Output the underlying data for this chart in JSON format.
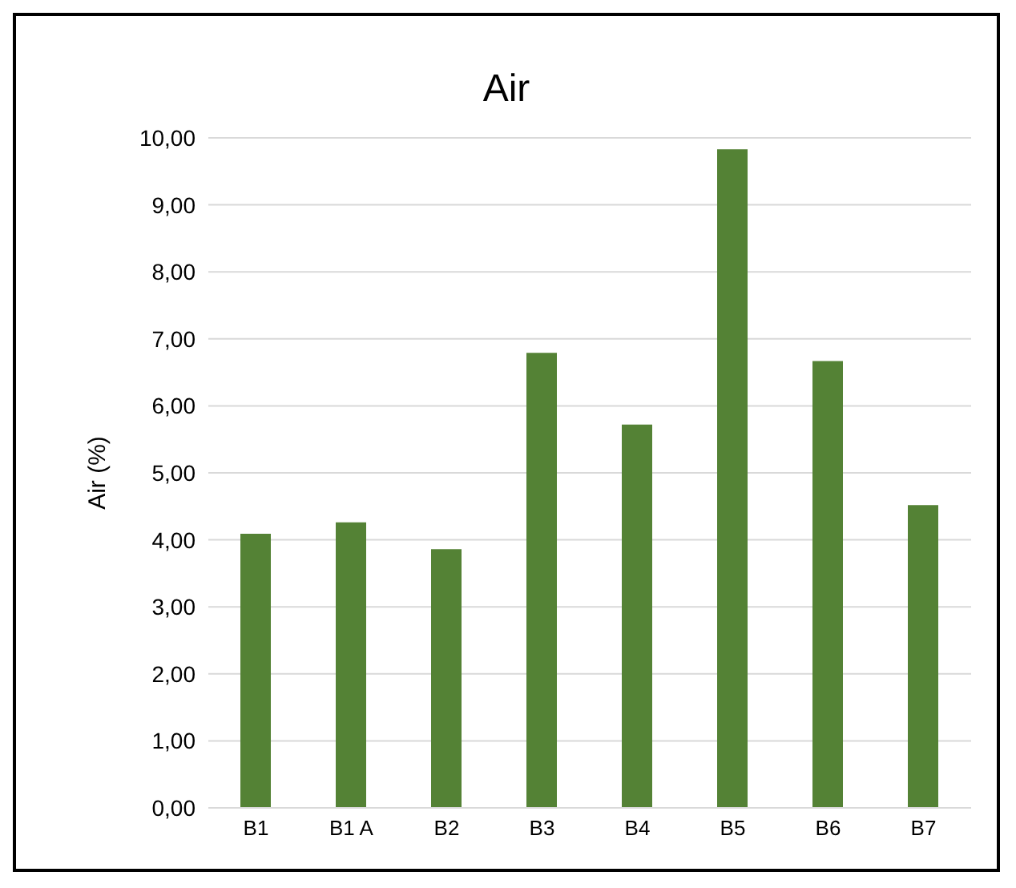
{
  "chart_data": {
    "type": "bar",
    "title": "Air",
    "ylabel": "Air (%)",
    "categories": [
      "B1",
      "B1 A",
      "B2",
      "B3",
      "B4",
      "B5",
      "B6",
      "B7"
    ],
    "values": [
      4.09,
      4.26,
      3.86,
      6.79,
      5.72,
      9.83,
      6.67,
      4.52
    ],
    "color": "#548235",
    "ylim": [
      0,
      10
    ],
    "yticks": [
      {
        "value": 0,
        "label": "0,00"
      },
      {
        "value": 1,
        "label": "1,00"
      },
      {
        "value": 2,
        "label": "2,00"
      },
      {
        "value": 3,
        "label": "3,00"
      },
      {
        "value": 4,
        "label": "4,00"
      },
      {
        "value": 5,
        "label": "5,00"
      },
      {
        "value": 6,
        "label": "6,00"
      },
      {
        "value": 7,
        "label": "7,00"
      },
      {
        "value": 8,
        "label": "8,00"
      },
      {
        "value": 9,
        "label": "9,00"
      },
      {
        "value": 10,
        "label": "10,00"
      }
    ],
    "grid": "y"
  }
}
